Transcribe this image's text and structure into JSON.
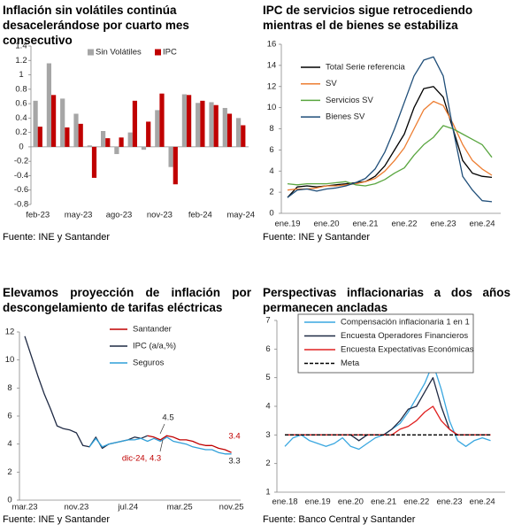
{
  "chart_data": [
    {
      "type": "bar",
      "title": "Inflación sin volátiles continúa desacelerándose por cuarto mes consecutivo",
      "source": "Fuente: INE y Santander",
      "categories": [
        "feb-23",
        null,
        null,
        "may-23",
        null,
        null,
        "ago-23",
        null,
        null,
        "nov-23",
        null,
        null,
        "feb-24",
        null,
        null,
        "may-24"
      ],
      "series": [
        {
          "name": "Sin Volátiles",
          "color": "#a6a6a6",
          "values": [
            0.64,
            1.16,
            0.67,
            0.46,
            0.02,
            0.22,
            -0.1,
            0.2,
            -0.04,
            0.51,
            -0.28,
            0.73,
            0.61,
            0.62,
            0.54,
            0.4
          ]
        },
        {
          "name": "IPC",
          "color": "#c00000",
          "values": [
            0.28,
            0.72,
            0.27,
            0.32,
            -0.43,
            0.12,
            0.13,
            0.64,
            0.35,
            0.74,
            -0.52,
            0.72,
            0.64,
            0.58,
            0.46,
            0.3
          ]
        }
      ],
      "ylim": [
        -0.8,
        1.4
      ],
      "yticks": [
        -0.8,
        -0.6,
        -0.4,
        -0.2,
        0,
        0.2,
        0.4,
        0.6,
        0.8,
        1,
        1.2,
        1.4
      ]
    },
    {
      "type": "line",
      "title": "IPC de servicios sigue retrocediendo mientras el de bienes se estabiliza",
      "source": "Fuente: INE y Santander",
      "categories": [
        "ene.19",
        null,
        null,
        null,
        "ene.20",
        null,
        null,
        null,
        "ene.21",
        null,
        null,
        null,
        "ene.22",
        null,
        null,
        null,
        "ene.23",
        null,
        null,
        null,
        "ene.24",
        null
      ],
      "series": [
        {
          "name": "Total Serie referencia",
          "color": "#000000",
          "values": [
            1.5,
            2.5,
            2.6,
            2.5,
            2.6,
            2.7,
            2.8,
            2.9,
            3.0,
            3.5,
            4.5,
            6.0,
            7.5,
            10.0,
            11.8,
            12.0,
            11.0,
            8.0,
            5.0,
            3.8,
            3.5,
            3.4
          ]
        },
        {
          "name": "SV",
          "color": "#ed7d31",
          "values": [
            2.2,
            2.3,
            2.3,
            2.4,
            2.6,
            2.6,
            2.7,
            2.8,
            3.0,
            3.3,
            4.0,
            5.0,
            6.2,
            8.0,
            9.8,
            10.6,
            10.2,
            8.5,
            6.5,
            5.0,
            4.2,
            3.6
          ]
        },
        {
          "name": "Servicios SV",
          "color": "#5aa640",
          "values": [
            2.8,
            2.7,
            2.8,
            2.8,
            2.8,
            2.9,
            3.0,
            2.7,
            2.6,
            2.8,
            3.2,
            3.8,
            4.3,
            5.5,
            6.5,
            7.2,
            8.3,
            8.0,
            7.5,
            7.0,
            6.5,
            5.3
          ]
        },
        {
          "name": "Bienes SV",
          "color": "#1f4e79",
          "values": [
            1.5,
            2.2,
            2.3,
            2.1,
            2.3,
            2.4,
            2.6,
            2.9,
            3.3,
            4.2,
            5.8,
            8.0,
            10.5,
            13.0,
            14.5,
            14.8,
            13.0,
            8.0,
            3.5,
            2.2,
            1.2,
            1.1
          ]
        }
      ],
      "ylim": [
        0,
        16
      ],
      "yticks": [
        0,
        2,
        4,
        6,
        8,
        10,
        12,
        14,
        16
      ]
    },
    {
      "type": "line",
      "title": "Elevamos proyección de inflación por descongelamiento de tarifas eléctricas",
      "source": "Fuente: INE y Santander",
      "categories": [
        "mar.23",
        null,
        null,
        null,
        null,
        null,
        null,
        null,
        "nov.23",
        null,
        null,
        null,
        null,
        null,
        null,
        null,
        "jul.24",
        null,
        null,
        null,
        null,
        null,
        null,
        null,
        "mar.25",
        null,
        null,
        null,
        null,
        null,
        null,
        null,
        "nov.25"
      ],
      "series": [
        {
          "name": "Santander",
          "color": "#c00000",
          "values": [
            null,
            null,
            null,
            null,
            null,
            null,
            null,
            null,
            null,
            null,
            null,
            null,
            null,
            null,
            null,
            null,
            null,
            null,
            null,
            4.6,
            4.5,
            4.3,
            4.6,
            4.5,
            4.3,
            4.3,
            4.2,
            4.0,
            3.9,
            3.9,
            3.7,
            3.6,
            3.4
          ]
        },
        {
          "name": "IPC (a/a,%)",
          "color": "#1f2a44",
          "values": [
            11.7,
            10.3,
            8.9,
            7.6,
            6.5,
            5.3,
            5.1,
            5.0,
            4.8,
            3.9,
            3.8,
            4.5,
            3.7,
            4.0,
            4.1,
            4.2,
            4.3,
            4.5,
            4.4,
            4.6,
            null,
            null,
            null,
            null,
            null,
            null,
            null,
            null,
            null,
            null,
            null,
            null,
            null
          ]
        },
        {
          "name": "Seguros",
          "color": "#2e9fd9",
          "values": [
            null,
            null,
            null,
            null,
            null,
            null,
            null,
            null,
            null,
            null,
            3.8,
            4.4,
            3.8,
            4.0,
            4.1,
            4.2,
            4.3,
            4.3,
            4.4,
            4.2,
            4.4,
            4.2,
            4.5,
            4.2,
            4.1,
            4.0,
            3.8,
            3.7,
            3.6,
            3.6,
            3.4,
            3.3,
            3.3
          ]
        }
      ],
      "annotations": [
        "4.5",
        "dic-24, 4.3",
        "3.4",
        "3.3"
      ],
      "ylim": [
        0,
        12
      ],
      "yticks": [
        0,
        2,
        4,
        6,
        8,
        10,
        12
      ]
    },
    {
      "type": "line",
      "title": "Perspectivas inflacionarias a dos años permanecen ancladas",
      "source": "Fuente: Banco Central y Santander",
      "categories": [
        "ene.18",
        null,
        null,
        null,
        "ene.19",
        null,
        null,
        null,
        "ene.20",
        null,
        null,
        null,
        "ene.21",
        null,
        null,
        null,
        "ene.22",
        null,
        null,
        null,
        "ene.23",
        null,
        null,
        null,
        "ene.24",
        null
      ],
      "series": [
        {
          "name": "Compensación inflacionaria 1 en 1",
          "color": "#3aa7e0",
          "values": [
            2.6,
            2.9,
            3.0,
            2.8,
            2.7,
            2.6,
            2.7,
            2.9,
            2.6,
            2.5,
            2.7,
            2.9,
            3.0,
            3.2,
            3.4,
            3.8,
            4.3,
            4.8,
            5.5,
            4.6,
            3.5,
            2.8,
            2.6,
            2.8,
            2.9,
            2.8
          ]
        },
        {
          "name": "Encuesta Operadores Financieros",
          "color": "#1f2a44",
          "values": [
            3.0,
            3.0,
            3.0,
            3.0,
            3.0,
            3.0,
            3.0,
            3.0,
            3.0,
            2.8,
            3.0,
            3.0,
            3.0,
            3.2,
            3.5,
            3.9,
            4.0,
            4.5,
            5.0,
            4.0,
            3.2,
            3.0,
            3.0,
            3.0,
            3.0,
            3.0
          ]
        },
        {
          "name": "Encuesta Expectativas Económicas",
          "color": "#e02020",
          "values": [
            3.0,
            3.0,
            3.0,
            3.0,
            3.0,
            3.0,
            3.0,
            3.0,
            3.0,
            3.0,
            3.0,
            3.0,
            3.0,
            3.0,
            3.2,
            3.3,
            3.5,
            3.8,
            4.0,
            3.5,
            3.2,
            3.0,
            3.0,
            3.0,
            3.0,
            3.0
          ]
        },
        {
          "name": "Meta",
          "color": "#000000",
          "dashed": true,
          "values": [
            3,
            3,
            3,
            3,
            3,
            3,
            3,
            3,
            3,
            3,
            3,
            3,
            3,
            3,
            3,
            3,
            3,
            3,
            3,
            3,
            3,
            3,
            3,
            3,
            3,
            3
          ]
        }
      ],
      "ylim": [
        1,
        7
      ],
      "yticks": [
        1,
        2,
        3,
        4,
        5,
        6,
        7
      ]
    }
  ]
}
